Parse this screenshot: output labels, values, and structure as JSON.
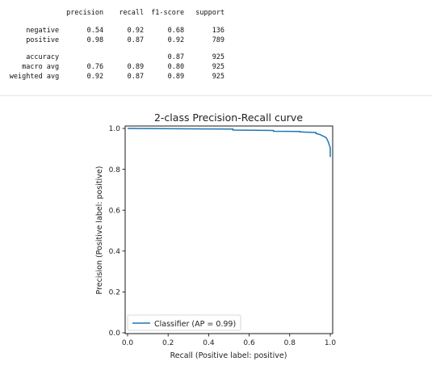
{
  "report": {
    "header": [
      "precision",
      "recall",
      "f1-score",
      "support"
    ],
    "rows": [
      {
        "label": "negative",
        "precision": "0.54",
        "recall": "0.92",
        "f1": "0.68",
        "support": "136"
      },
      {
        "label": "positive",
        "precision": "0.98",
        "recall": "0.87",
        "f1": "0.92",
        "support": "789"
      },
      {
        "label": "accuracy",
        "precision": "",
        "recall": "",
        "f1": "0.87",
        "support": "925"
      },
      {
        "label": "macro avg",
        "precision": "0.76",
        "recall": "0.89",
        "f1": "0.80",
        "support": "925"
      },
      {
        "label": "weighted avg",
        "precision": "0.92",
        "recall": "0.87",
        "f1": "0.89",
        "support": "925"
      }
    ]
  },
  "chart_data": {
    "type": "line",
    "title": "2-class Precision-Recall curve",
    "xlabel": "Recall (Positive label: positive)",
    "ylabel": "Precision (Positive label: positive)",
    "xlim": [
      0.0,
      1.0
    ],
    "ylim": [
      0.0,
      1.0
    ],
    "xticks": [
      "0.0",
      "0.2",
      "0.4",
      "0.6",
      "0.8",
      "1.0"
    ],
    "yticks": [
      "0.0",
      "0.2",
      "0.4",
      "0.6",
      "0.8",
      "1.0"
    ],
    "grid": false,
    "legend_position": "lower-left",
    "line_color": "#1f77b4",
    "series": [
      {
        "name": "Classifier (AP = 0.99)",
        "x": [
          0.0,
          0.52,
          0.52,
          0.72,
          0.72,
          0.85,
          0.85,
          0.93,
          0.93,
          0.95,
          0.96,
          0.97,
          0.98,
          0.985,
          0.99,
          0.995,
          1.0,
          1.0
        ],
        "y": [
          1.0,
          0.997,
          0.992,
          0.99,
          0.986,
          0.985,
          0.983,
          0.98,
          0.975,
          0.97,
          0.965,
          0.96,
          0.955,
          0.945,
          0.935,
          0.92,
          0.905,
          0.86
        ]
      }
    ]
  }
}
